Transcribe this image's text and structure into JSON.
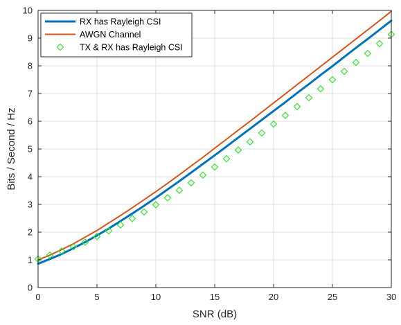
{
  "chart_data": {
    "type": "line",
    "title": "",
    "xlabel": "SNR (dB)",
    "ylabel": "Bits / Second / Hz",
    "xlim": [
      0,
      30
    ],
    "ylim": [
      0,
      10
    ],
    "xticks": [
      0,
      5,
      10,
      15,
      20,
      25,
      30
    ],
    "yticks": [
      0,
      1,
      2,
      3,
      4,
      5,
      6,
      7,
      8,
      9,
      10
    ],
    "grid": true,
    "legend_position": "top-left",
    "series": [
      {
        "name": "RX has Rayleigh CSI",
        "style": "line",
        "color": "#0072BD",
        "x": [
          0,
          1,
          2,
          3,
          4,
          5,
          6,
          7,
          8,
          9,
          10,
          11,
          12,
          13,
          14,
          15,
          16,
          17,
          18,
          19,
          20,
          21,
          22,
          23,
          24,
          25,
          26,
          27,
          28,
          29,
          30
        ],
        "y": [
          0.86,
          1.03,
          1.21,
          1.42,
          1.64,
          1.88,
          2.13,
          2.4,
          2.67,
          2.95,
          3.24,
          3.54,
          3.84,
          4.15,
          4.46,
          4.77,
          5.09,
          5.41,
          5.73,
          6.05,
          6.37,
          6.69,
          7.02,
          7.34,
          7.67,
          7.99,
          8.32,
          8.65,
          8.97,
          9.3,
          9.63
        ]
      },
      {
        "name": "AWGN Channel",
        "style": "line",
        "color": "#D95319",
        "x": [
          0,
          1,
          2,
          3,
          4,
          5,
          6,
          7,
          8,
          9,
          10,
          11,
          12,
          13,
          14,
          15,
          16,
          17,
          18,
          19,
          20,
          21,
          22,
          23,
          24,
          25,
          26,
          27,
          28,
          29,
          30
        ],
        "y": [
          1.0,
          1.17,
          1.37,
          1.58,
          1.82,
          2.06,
          2.33,
          2.6,
          2.88,
          3.17,
          3.46,
          3.76,
          4.07,
          4.39,
          4.7,
          5.03,
          5.35,
          5.68,
          6.0,
          6.33,
          6.66,
          6.99,
          7.32,
          7.65,
          7.98,
          8.31,
          8.64,
          8.97,
          9.3,
          9.63,
          9.97
        ]
      },
      {
        "name": "TX & RX has Rayleigh CSI",
        "style": "markers",
        "marker": "diamond",
        "color": "#33E633",
        "x": [
          0,
          1,
          2,
          3,
          4,
          5,
          6,
          7,
          8,
          9,
          10,
          11,
          12,
          13,
          14,
          15,
          16,
          17,
          18,
          19,
          20,
          21,
          22,
          23,
          24,
          25,
          26,
          27,
          28,
          29,
          30
        ],
        "y": [
          1.03,
          1.17,
          1.32,
          1.47,
          1.64,
          1.84,
          2.05,
          2.26,
          2.49,
          2.73,
          2.99,
          3.24,
          3.51,
          3.78,
          4.06,
          4.35,
          4.65,
          4.96,
          5.26,
          5.58,
          5.9,
          6.21,
          6.53,
          6.85,
          7.17,
          7.5,
          7.8,
          8.12,
          8.45,
          8.8,
          9.13
        ]
      }
    ]
  }
}
